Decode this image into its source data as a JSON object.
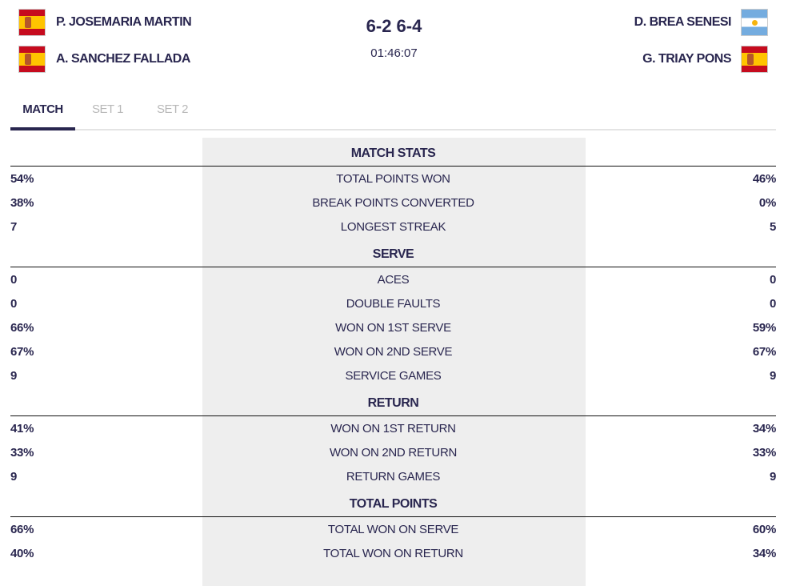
{
  "players": {
    "team1": [
      "P. JOSEMARIA MARTIN",
      "A. SANCHEZ FALLADA"
    ],
    "team2": [
      "D. BREA SENESI",
      "G. TRIAY PONS"
    ],
    "team1_flags": [
      "spain-flag-icon",
      "spain-flag-icon"
    ],
    "team2_flags": [
      "argentina-flag-icon",
      "spain-flag-icon"
    ]
  },
  "score": "6-2 6-4",
  "duration": "01:46:07",
  "tabs": [
    "MATCH",
    "SET 1",
    "SET 2"
  ],
  "sections": [
    {
      "title": "MATCH STATS",
      "rows": [
        [
          "54%",
          "TOTAL POINTS WON",
          "46%"
        ],
        [
          "38%",
          "BREAK POINTS CONVERTED",
          "0%"
        ],
        [
          "7",
          "LONGEST STREAK",
          "5"
        ]
      ]
    },
    {
      "title": "SERVE",
      "rows": [
        [
          "0",
          "ACES",
          "0"
        ],
        [
          "0",
          "DOUBLE FAULTS",
          "0"
        ],
        [
          "66%",
          "WON ON 1ST SERVE",
          "59%"
        ],
        [
          "67%",
          "WON ON 2ND SERVE",
          "67%"
        ],
        [
          "9",
          "SERVICE GAMES",
          "9"
        ]
      ]
    },
    {
      "title": "RETURN",
      "rows": [
        [
          "41%",
          "WON ON 1ST RETURN",
          "34%"
        ],
        [
          "33%",
          "WON ON 2ND RETURN",
          "33%"
        ],
        [
          "9",
          "RETURN GAMES",
          "9"
        ]
      ]
    },
    {
      "title": "TOTAL POINTS",
      "rows": [
        [
          "66%",
          "TOTAL WON ON SERVE",
          "60%"
        ],
        [
          "40%",
          "TOTAL WON ON RETURN",
          "34%"
        ]
      ]
    }
  ]
}
